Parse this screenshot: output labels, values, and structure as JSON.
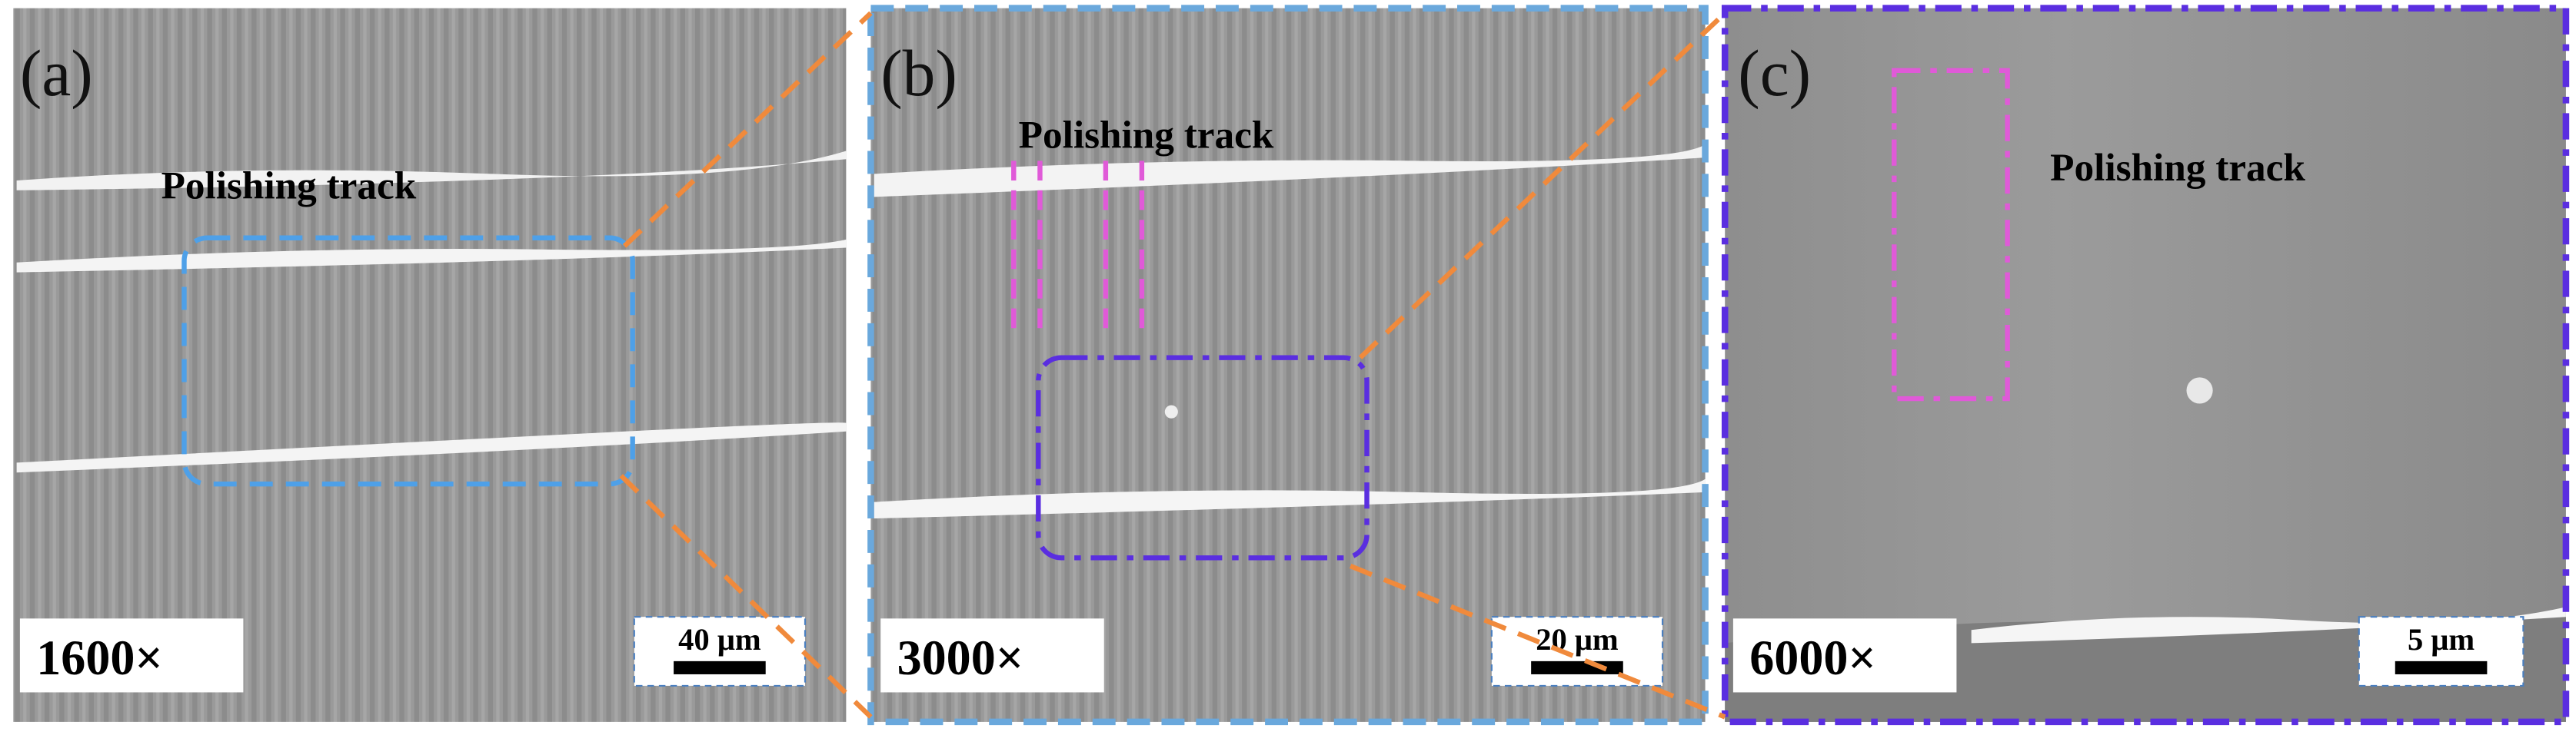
{
  "panels": [
    {
      "label": "(a)",
      "annotation": "Polishing track",
      "magnification": "1600×",
      "scale_bar": "40 μm"
    },
    {
      "label": "(b)",
      "annotation": "Polishing track",
      "magnification": "3000×",
      "scale_bar": "20 μm"
    },
    {
      "label": "(c)",
      "annotation": "Polishing track",
      "magnification": "6000×",
      "scale_bar": "5 μm"
    }
  ]
}
